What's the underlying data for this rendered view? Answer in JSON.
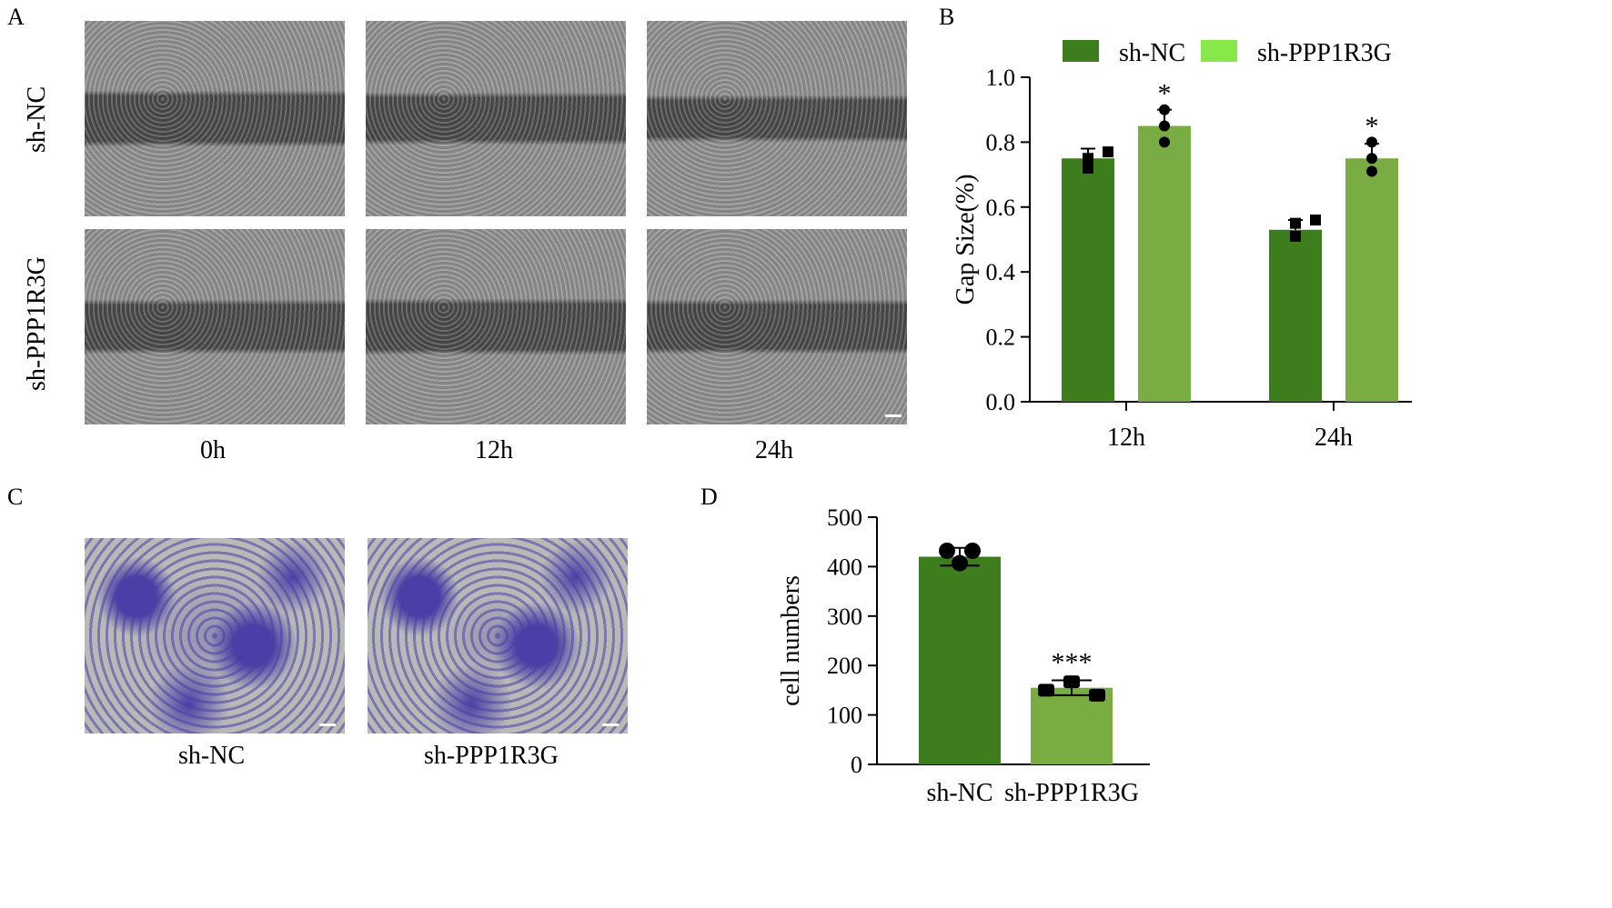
{
  "panels": {
    "a": "A",
    "b": "B",
    "c": "C",
    "d": "D"
  },
  "scratch_assay": {
    "row_labels": [
      "sh-NC",
      "sh-PPP1R3G"
    ],
    "time_labels": [
      "0h",
      "12h",
      "24h"
    ],
    "colors": {
      "cells": "#8f8f8f",
      "gap": "#4a4a4a"
    }
  },
  "transwell": {
    "labels": [
      "sh-NC",
      "sh-PPP1R3G"
    ],
    "colors": {
      "background": "#b8bab8",
      "stain": "#4a3fa6"
    }
  },
  "chart_data": [
    {
      "type": "bar",
      "categories": [
        "12h",
        "24h"
      ],
      "series": [
        {
          "name": "sh-NC",
          "color": "#3e7d1e",
          "values": [
            0.75,
            0.53
          ],
          "points": [
            [
              0.75,
              0.72,
              0.77
            ],
            [
              0.55,
              0.51,
              0.56
            ]
          ],
          "marker": "square"
        },
        {
          "name": "sh-PPP1R3G",
          "color": "#79ad44",
          "values": [
            0.85,
            0.75
          ],
          "points": [
            [
              0.9,
              0.85,
              0.8
            ],
            [
              0.8,
              0.75,
              0.71
            ]
          ],
          "marker": "circle"
        }
      ],
      "error": [
        [
          0.03,
          0.03
        ],
        [
          0.05,
          0.045
        ]
      ],
      "significance": [
        [
          "",
          ""
        ],
        [
          "*",
          "*"
        ]
      ],
      "legend_colors": [
        "#3e7d1e",
        "#88e84a"
      ],
      "ylabel": "Gap Size(%)",
      "xlabel": "",
      "ylim": [
        0,
        1.0
      ],
      "yticks": [
        "0.0",
        "0.2",
        "0.4",
        "0.6",
        "0.8",
        "1.0"
      ],
      "legend": "top"
    },
    {
      "type": "bar",
      "categories": [
        "sh-NC",
        "sh-PPP1R3G"
      ],
      "series": [
        {
          "values": [
            420,
            155
          ],
          "colors": [
            "#3e7d1e",
            "#79ad44"
          ]
        }
      ],
      "points": [
        [
          432,
          407,
          432
        ],
        [
          150,
          167,
          140
        ]
      ],
      "error": [
        18,
        15
      ],
      "significance": [
        "",
        "***"
      ],
      "ylabel": "cell numbers",
      "xlabel": "",
      "ylim": [
        0,
        500
      ],
      "yticks": [
        "0",
        "100",
        "200",
        "300",
        "400",
        "500"
      ]
    }
  ]
}
